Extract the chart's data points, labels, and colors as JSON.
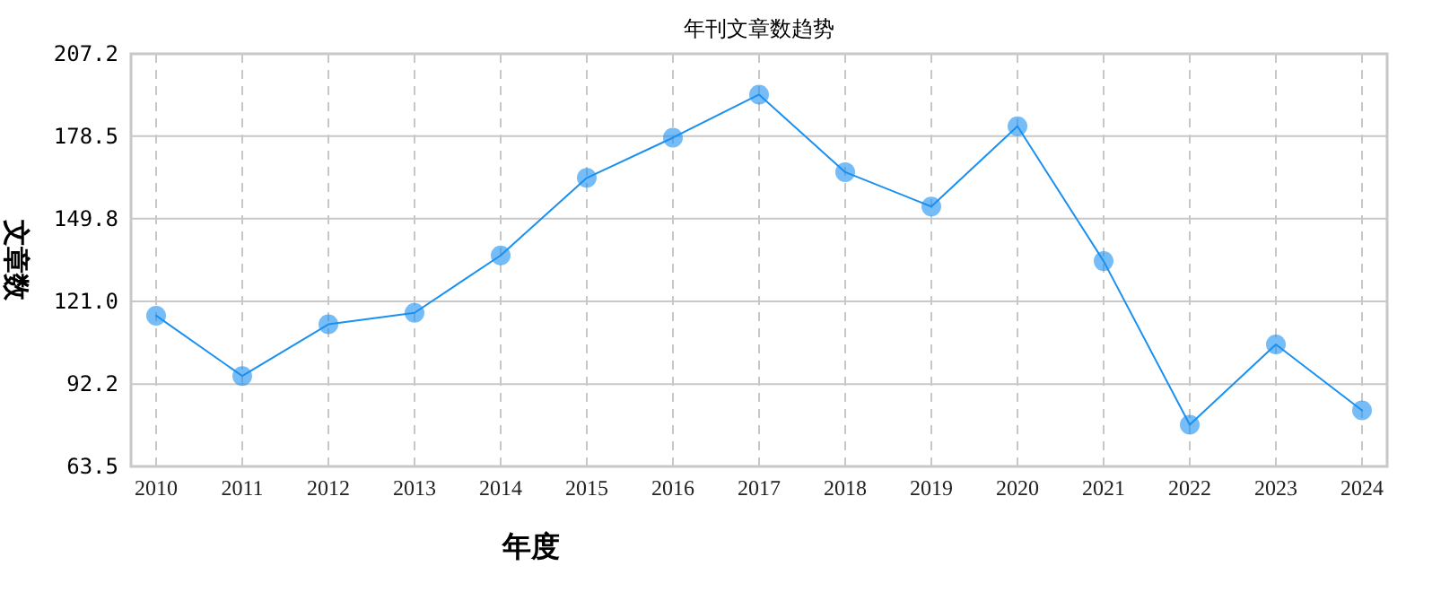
{
  "chart_data": {
    "type": "line",
    "title": "年刊文章数趋势",
    "xlabel": "年度",
    "ylabel": "文章数",
    "categories": [
      "2010",
      "2011",
      "2012",
      "2013",
      "2014",
      "2015",
      "2016",
      "2017",
      "2018",
      "2019",
      "2020",
      "2021",
      "2022",
      "2023",
      "2024"
    ],
    "series": [
      {
        "color": "#1a90f0",
        "values": [
          116,
          95,
          113,
          117,
          137,
          164,
          178,
          193,
          166,
          154,
          182,
          135,
          78,
          106,
          83
        ]
      }
    ],
    "ylim": [
      63.5,
      207.2
    ],
    "yticks": [
      {
        "value": 63.5,
        "label": "63.5"
      },
      {
        "value": 92.2,
        "label": "92.2"
      },
      {
        "value": 121.0,
        "label": "121.0"
      },
      {
        "value": 149.8,
        "label": "149.8"
      },
      {
        "value": 178.5,
        "label": "178.5"
      },
      {
        "value": 207.2,
        "label": "207.2"
      }
    ],
    "grid": true,
    "marker": "circle",
    "line_style": "solid"
  }
}
